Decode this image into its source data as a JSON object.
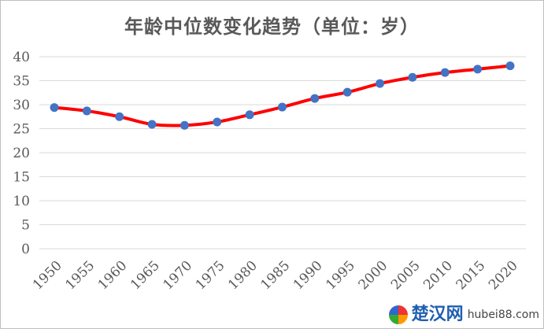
{
  "chart_data": {
    "type": "line",
    "title": "年龄中位数变化趋势（单位：岁）",
    "xlabel": "",
    "ylabel": "",
    "categories": [
      "1950",
      "1955",
      "1960",
      "1965",
      "1970",
      "1975",
      "1980",
      "1985",
      "1990",
      "1995",
      "2000",
      "2005",
      "2010",
      "2015",
      "2020"
    ],
    "series": [
      {
        "values": [
          29.4,
          28.7,
          27.5,
          25.9,
          25.7,
          26.4,
          27.9,
          29.5,
          31.3,
          32.6,
          34.4,
          35.7,
          36.7,
          37.4,
          38.1
        ]
      }
    ],
    "ylim": [
      0,
      40
    ],
    "yticks": [
      0,
      5,
      10,
      15,
      20,
      25,
      30,
      35,
      40
    ],
    "grid": true,
    "smooth": true,
    "legend": "none",
    "colors": {
      "line": "#ff0000",
      "marker": "#4472c4",
      "grid": "#d9d9d9",
      "text": "#595959"
    }
  },
  "watermark": {
    "name": "楚汉网",
    "url": "hubei88.com"
  }
}
